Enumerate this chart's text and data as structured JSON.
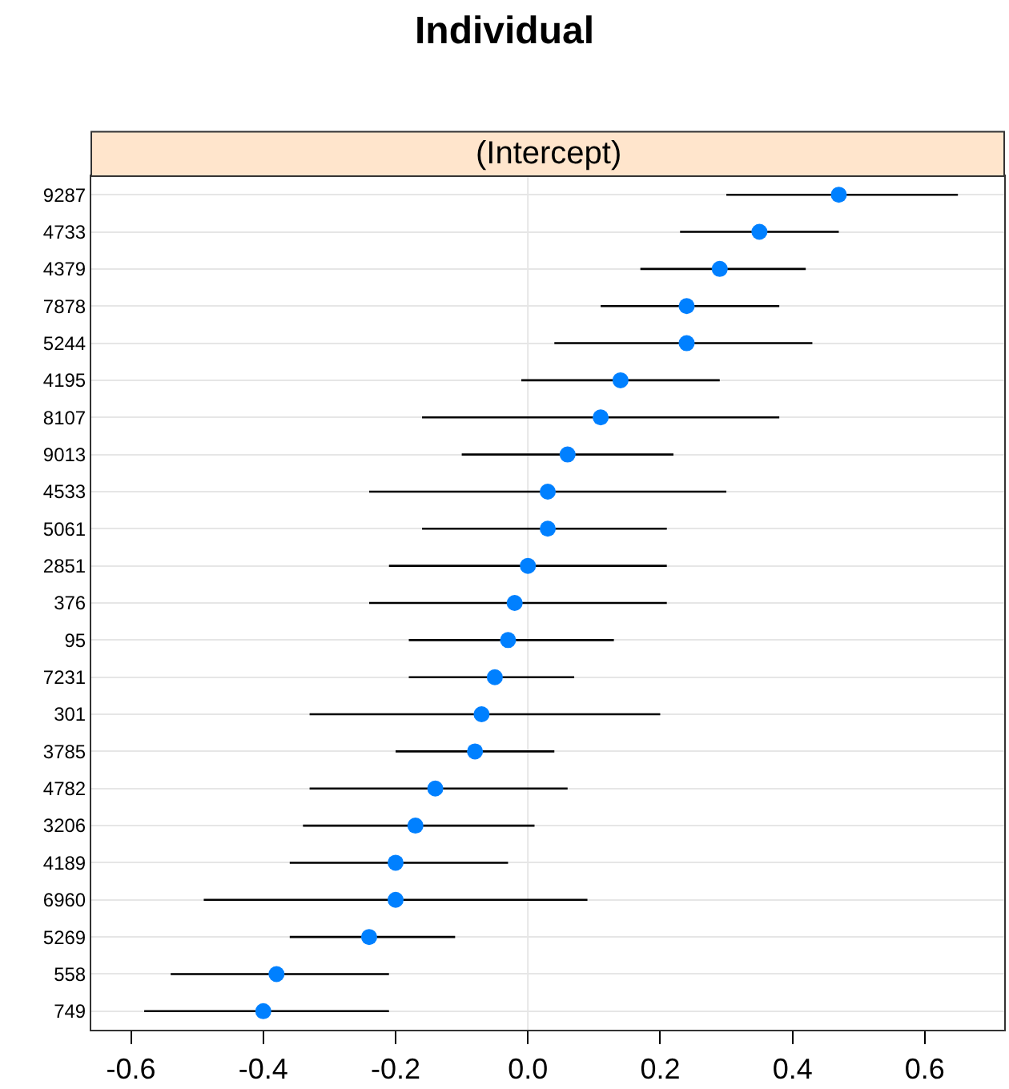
{
  "chart_data": {
    "type": "scatter",
    "orientation": "horizontal",
    "title": "Individual",
    "subtitle": "(Intercept)",
    "categories": [
      "9287",
      "4733",
      "4379",
      "7878",
      "5244",
      "4195",
      "8107",
      "9013",
      "4533",
      "5061",
      "2851",
      "376",
      "95",
      "7231",
      "301",
      "3785",
      "4782",
      "3206",
      "4189",
      "6960",
      "5269",
      "558",
      "749"
    ],
    "series": [
      {
        "color": "#0080ff",
        "values": [
          0.47,
          0.35,
          0.29,
          0.24,
          0.24,
          0.14,
          0.11,
          0.06,
          0.03,
          0.03,
          0.0,
          -0.02,
          -0.03,
          -0.05,
          -0.07,
          -0.08,
          -0.14,
          -0.17,
          -0.2,
          -0.2,
          -0.24,
          -0.38,
          -0.4
        ],
        "errors": [
          [
            0.3,
            0.65
          ],
          [
            0.23,
            0.47
          ],
          [
            0.17,
            0.42
          ],
          [
            0.11,
            0.38
          ],
          [
            0.04,
            0.43
          ],
          [
            -0.01,
            0.29
          ],
          [
            -0.16,
            0.38
          ],
          [
            -0.1,
            0.22
          ],
          [
            -0.24,
            0.3
          ],
          [
            -0.16,
            0.21
          ],
          [
            -0.21,
            0.21
          ],
          [
            -0.24,
            0.21
          ],
          [
            -0.18,
            0.13
          ],
          [
            -0.18,
            0.07
          ],
          [
            -0.33,
            0.2
          ],
          [
            -0.2,
            0.04
          ],
          [
            -0.33,
            0.06
          ],
          [
            -0.34,
            0.01
          ],
          [
            -0.36,
            -0.03
          ],
          [
            -0.49,
            0.09
          ],
          [
            -0.36,
            -0.11
          ],
          [
            -0.54,
            -0.21
          ],
          [
            -0.58,
            -0.21
          ]
        ]
      }
    ],
    "xlim": [
      -0.66,
      0.72
    ],
    "xticks": [
      {
        "value": -0.6,
        "label": "-0.6"
      },
      {
        "value": -0.4,
        "label": "-0.4"
      },
      {
        "value": -0.2,
        "label": "-0.2"
      },
      {
        "value": 0,
        "label": "0.0"
      },
      {
        "value": 0.2,
        "label": "0.2"
      },
      {
        "value": 0.4,
        "label": "0.4"
      },
      {
        "value": 0.6,
        "label": "0.6"
      }
    ],
    "ref_lines": [
      {
        "axis": "x",
        "value": 0,
        "color": "#e6e6e6"
      }
    ],
    "grid": "y",
    "marker": "circle"
  }
}
